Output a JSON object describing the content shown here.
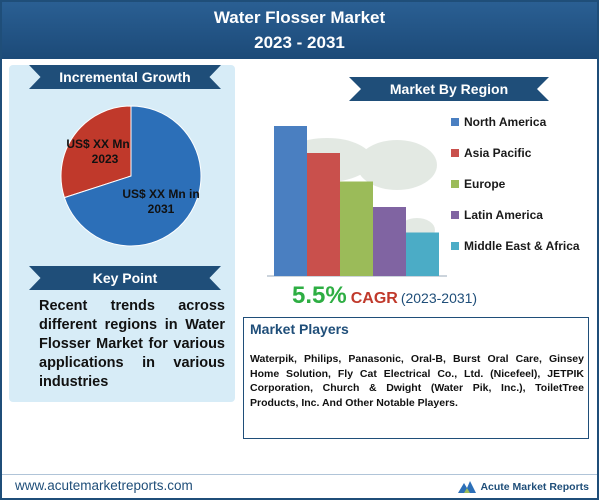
{
  "header": {
    "title": "Water Flosser Market",
    "years": "2023 - 2031"
  },
  "incremental": {
    "label": "Incremental Growth"
  },
  "key_point": {
    "label": "Key Point",
    "text": "Recent trends across different regions in Water Flosser Market for various applications in various industries"
  },
  "region": {
    "label": "Market By Region"
  },
  "cagr": {
    "value": "5.5%",
    "label": "CAGR",
    "period": "(2023-2031)"
  },
  "players": {
    "label": "Market Players",
    "text": "Waterpik, Philips, Panasonic, Oral-B, Burst Oral Care, Ginsey Home Solution, Fly Cat Electrical Co., Ltd. (Nicefeel), JETPIK Corporation, Church & Dwight (Water Pik, Inc.), ToiletTree Products, Inc. And Other Notable Players."
  },
  "footer": {
    "url": "www.acutemarketreports.com",
    "brand": "Acute Market Reports"
  },
  "chart_data": [
    {
      "type": "pie",
      "labels": [
        "US$ XX Mn in 2023",
        "US$ XX Mn in 2031"
      ],
      "values": [
        30,
        70
      ],
      "colors": [
        "#c0392b",
        "#2c6fb8"
      ]
    },
    {
      "type": "bar",
      "categories": [
        "North America",
        "Asia Pacific",
        "Europe",
        "Latin America",
        "Middle East & Africa"
      ],
      "values": [
        100,
        82,
        63,
        46,
        29
      ],
      "colors": [
        "#4a7fc1",
        "#c9504c",
        "#9bbb59",
        "#8064a2",
        "#4bacc6"
      ],
      "ylim": [
        0,
        100
      ]
    }
  ]
}
